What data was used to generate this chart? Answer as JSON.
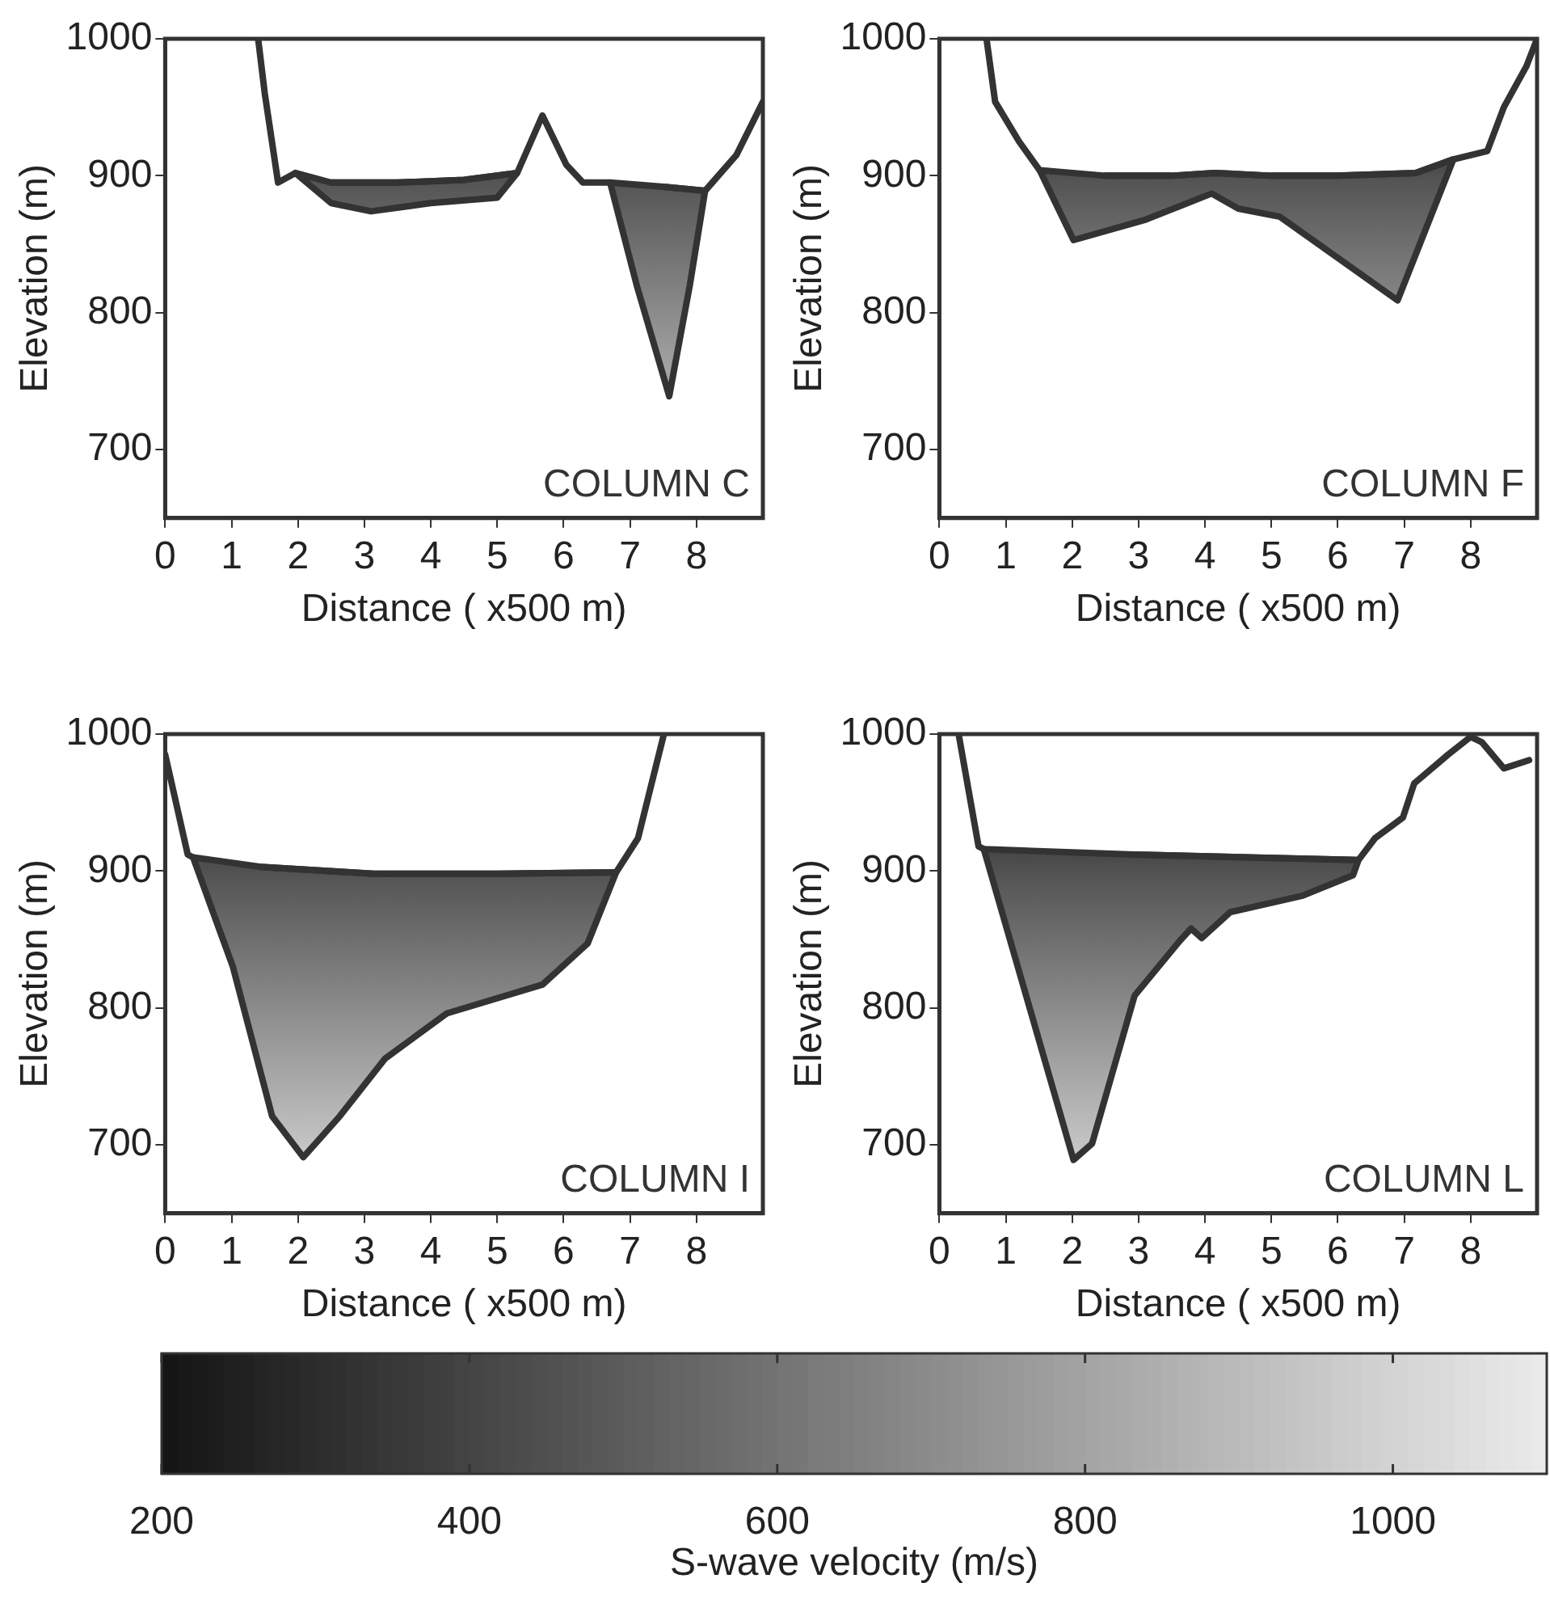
{
  "chart_data": [
    {
      "type": "line",
      "xlabel": "Distance ( x500 m)",
      "ylabel": "Elevation (m)",
      "annotations": [
        "COLUMN C"
      ],
      "xlim": [
        0,
        9
      ],
      "xticks": [
        0,
        1,
        2,
        3,
        4,
        5,
        6,
        7,
        8
      ],
      "ylim": [
        650,
        1000
      ],
      "yticks": [
        700,
        800,
        900,
        1000
      ],
      "legend": false,
      "grid": false,
      "marker": "none",
      "series": [
        {
          "color": "#333333",
          "x": [
            1.4,
            1.5,
            1.7,
            1.96,
            2.5,
            3.5,
            4.5,
            5.3,
            5.68,
            6.04,
            6.29,
            6.7,
            7.5,
            8.13,
            8.6,
            9
          ],
          "values": [
            1000,
            960,
            895,
            902,
            895,
            895,
            897,
            902,
            944,
            908,
            895,
            895,
            892,
            889,
            915,
            954
          ]
        },
        {
          "type": "area",
          "color": "#333333",
          "x": [
            1.96,
            2.5,
            3.1,
            3.99,
            5.0,
            5.3,
            4.5,
            3.5,
            2.5
          ],
          "values": [
            902,
            880,
            874,
            880,
            884,
            902,
            897,
            895,
            895
          ]
        },
        {
          "type": "area",
          "color": "#333333",
          "x": [
            6.7,
            7.1,
            7.59,
            7.9,
            8.13,
            7.5
          ],
          "values": [
            895,
            820,
            739,
            820,
            889,
            892
          ]
        }
      ]
    },
    {
      "type": "line",
      "xlabel": "Distance ( x500 m)",
      "ylabel": "Elevation (m)",
      "annotations": [
        "COLUMN F"
      ],
      "xlim": [
        0,
        9
      ],
      "xticks": [
        0,
        1,
        2,
        3,
        4,
        5,
        6,
        7,
        8
      ],
      "ylim": [
        650,
        1000
      ],
      "yticks": [
        700,
        800,
        900,
        1000
      ],
      "legend": false,
      "grid": false,
      "marker": "none",
      "series": [
        {
          "color": "#333333",
          "x": [
            0.71,
            0.84,
            1.2,
            1.51,
            2.5,
            3.5,
            4.14,
            5,
            6,
            7.17,
            7.74,
            8.25,
            8.5,
            8.84,
            9
          ],
          "values": [
            1000,
            954,
            925,
            904,
            900,
            900,
            902,
            900,
            900,
            902,
            912,
            918,
            950,
            980,
            1000
          ]
        },
        {
          "type": "area",
          "color": "#333333",
          "x": [
            1.51,
            2.02,
            3.11,
            4.1,
            4.5,
            5.13,
            6.9,
            7.74,
            7.17,
            6,
            5,
            4.14,
            3.5,
            2.5
          ],
          "values": [
            904,
            853,
            868,
            887,
            876,
            870,
            809,
            912,
            902,
            900,
            900,
            902,
            900,
            900
          ]
        }
      ]
    },
    {
      "type": "line",
      "xlabel": "Distance ( x500 m)",
      "ylabel": "Elevation (m)",
      "annotations": [
        "COLUMN I"
      ],
      "xlim": [
        0,
        9
      ],
      "xticks": [
        0,
        1,
        2,
        3,
        4,
        5,
        6,
        7,
        8
      ],
      "ylim": [
        650,
        1000
      ],
      "yticks": [
        700,
        800,
        900,
        1000
      ],
      "legend": false,
      "grid": false,
      "marker": "none",
      "series": [
        {
          "color": "#333333",
          "x": [
            0,
            0.34,
            0.42,
            1.44,
            3.14,
            5,
            6.79,
            7.12,
            7.51
          ],
          "values": [
            985,
            912,
            910,
            903,
            898,
            898,
            899,
            924,
            1000
          ]
        },
        {
          "type": "area",
          "color": "#333333",
          "x": [
            0.42,
            1.02,
            1.61,
            2.08,
            2.63,
            3.31,
            4.24,
            5.68,
            6.36,
            6.79,
            5,
            3.14,
            1.44
          ],
          "values": [
            910,
            830,
            721,
            691,
            721,
            763,
            796,
            817,
            847,
            899,
            898,
            898,
            903
          ]
        }
      ]
    },
    {
      "type": "line",
      "xlabel": "Distance ( x500 m)",
      "ylabel": "Elevation (m)",
      "annotations": [
        "COLUMN L"
      ],
      "xlim": [
        0,
        9
      ],
      "xticks": [
        0,
        1,
        2,
        3,
        4,
        5,
        6,
        7,
        8
      ],
      "ylim": [
        650,
        1000
      ],
      "yticks": [
        700,
        800,
        900,
        1000
      ],
      "legend": false,
      "grid": false,
      "marker": "none",
      "clabel": "S-wave velocity (m/s)",
      "clim": [
        200,
        1100
      ],
      "cticks": [
        200,
        400,
        600,
        800,
        1000
      ],
      "series": [
        {
          "color": "#333333",
          "x": [
            0.29,
            0.59,
            0.67,
            2.94,
            6.31,
            6.56,
            6.98,
            7.15,
            7.66,
            8.0,
            8.17,
            8.5,
            8.88
          ],
          "values": [
            1000,
            918,
            916,
            912,
            908,
            924,
            939,
            964,
            985,
            998,
            994,
            975,
            981
          ]
        },
        {
          "type": "area",
          "color": "#333333",
          "x": [
            0.67,
            2.02,
            2.3,
            2.94,
            3.62,
            3.79,
            3.95,
            4.38,
            5.47,
            6.23,
            6.31,
            2.94
          ],
          "values": [
            916,
            689,
            701,
            809,
            849,
            858,
            851,
            870,
            882,
            897,
            908,
            912
          ]
        }
      ]
    }
  ]
}
